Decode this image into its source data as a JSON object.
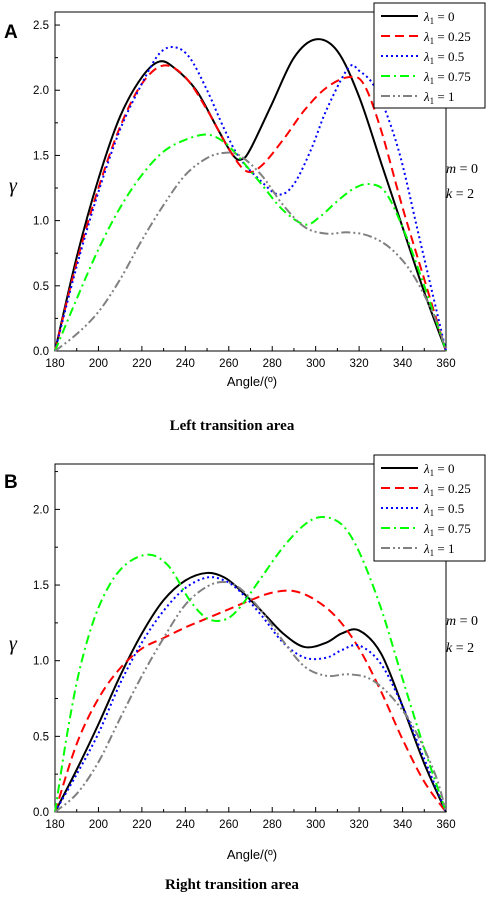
{
  "chart_data": [
    {
      "panel": "A",
      "type": "line",
      "caption": "Left transition area",
      "xlabel": "Angle/(º)",
      "ylabel": "γ",
      "xlim": [
        180,
        360
      ],
      "ylim": [
        0,
        2.6
      ],
      "x_ticks": [
        180,
        200,
        220,
        240,
        260,
        280,
        300,
        320,
        340,
        360
      ],
      "y_ticks": [
        0.0,
        0.5,
        1.0,
        1.5,
        2.0,
        2.5
      ],
      "legend_position": "top-right",
      "annotations": [
        "m = 0",
        "k = 2"
      ],
      "series": [
        {
          "name": "λ1 = 0",
          "value": "0",
          "color": "#000000",
          "dash": "solid",
          "points": [
            [
              180,
              0
            ],
            [
              190,
              0.72
            ],
            [
              200,
              1.32
            ],
            [
              210,
              1.8
            ],
            [
              220,
              2.1
            ],
            [
              228,
              2.22
            ],
            [
              235,
              2.17
            ],
            [
              245,
              2.0
            ],
            [
              255,
              1.7
            ],
            [
              262,
              1.5
            ],
            [
              266,
              1.47
            ],
            [
              270,
              1.55
            ],
            [
              280,
              1.9
            ],
            [
              290,
              2.25
            ],
            [
              300,
              2.39
            ],
            [
              310,
              2.3
            ],
            [
              320,
              1.95
            ],
            [
              330,
              1.45
            ],
            [
              340,
              0.95
            ],
            [
              350,
              0.45
            ],
            [
              360,
              0
            ]
          ]
        },
        {
          "name": "λ1 = 0.25",
          "value": "0.25",
          "color": "#ff0000",
          "dash": "dashed",
          "points": [
            [
              180,
              0
            ],
            [
              190,
              0.68
            ],
            [
              200,
              1.25
            ],
            [
              210,
              1.72
            ],
            [
              220,
              2.05
            ],
            [
              230,
              2.19
            ],
            [
              240,
              2.1
            ],
            [
              250,
              1.85
            ],
            [
              260,
              1.55
            ],
            [
              268,
              1.38
            ],
            [
              275,
              1.42
            ],
            [
              285,
              1.62
            ],
            [
              295,
              1.85
            ],
            [
              305,
              2.02
            ],
            [
              315,
              2.1
            ],
            [
              322,
              2.05
            ],
            [
              330,
              1.7
            ],
            [
              340,
              1.1
            ],
            [
              350,
              0.55
            ],
            [
              360,
              0
            ]
          ]
        },
        {
          "name": "λ1 = 0.5",
          "value": "0.5",
          "color": "#0000ff",
          "dash": "dotted",
          "points": [
            [
              180,
              0
            ],
            [
              190,
              0.65
            ],
            [
              200,
              1.22
            ],
            [
              210,
              1.7
            ],
            [
              220,
              2.05
            ],
            [
              228,
              2.28
            ],
            [
              235,
              2.33
            ],
            [
              242,
              2.25
            ],
            [
              250,
              2.0
            ],
            [
              258,
              1.7
            ],
            [
              265,
              1.48
            ],
            [
              275,
              1.3
            ],
            [
              283,
              1.2
            ],
            [
              290,
              1.28
            ],
            [
              298,
              1.55
            ],
            [
              305,
              1.85
            ],
            [
              315,
              2.17
            ],
            [
              320,
              2.15
            ],
            [
              328,
              2.0
            ],
            [
              338,
              1.55
            ],
            [
              348,
              0.85
            ],
            [
              360,
              0
            ]
          ]
        },
        {
          "name": "λ1 = 0.75",
          "value": "0.75",
          "color": "#00ff00",
          "dash": "dashdot",
          "points": [
            [
              180,
              0
            ],
            [
              190,
              0.4
            ],
            [
              200,
              0.78
            ],
            [
              210,
              1.1
            ],
            [
              220,
              1.35
            ],
            [
              230,
              1.53
            ],
            [
              240,
              1.62
            ],
            [
              250,
              1.66
            ],
            [
              258,
              1.6
            ],
            [
              265,
              1.48
            ],
            [
              275,
              1.28
            ],
            [
              285,
              1.08
            ],
            [
              295,
              0.97
            ],
            [
              302,
              1.03
            ],
            [
              310,
              1.15
            ],
            [
              318,
              1.25
            ],
            [
              325,
              1.28
            ],
            [
              332,
              1.22
            ],
            [
              340,
              0.95
            ],
            [
              350,
              0.5
            ],
            [
              360,
              0
            ]
          ]
        },
        {
          "name": "λ1 = 1",
          "value": "1",
          "color": "#808080",
          "dash": "dashdotdot",
          "points": [
            [
              180,
              0
            ],
            [
              190,
              0.13
            ],
            [
              200,
              0.3
            ],
            [
              210,
              0.55
            ],
            [
              220,
              0.85
            ],
            [
              230,
              1.12
            ],
            [
              240,
              1.35
            ],
            [
              250,
              1.48
            ],
            [
              258,
              1.52
            ],
            [
              265,
              1.5
            ],
            [
              275,
              1.35
            ],
            [
              285,
              1.12
            ],
            [
              295,
              0.95
            ],
            [
              305,
              0.9
            ],
            [
              315,
              0.91
            ],
            [
              325,
              0.88
            ],
            [
              335,
              0.78
            ],
            [
              345,
              0.58
            ],
            [
              355,
              0.25
            ],
            [
              360,
              0
            ]
          ]
        }
      ]
    },
    {
      "panel": "B",
      "type": "line",
      "caption": "Right transition area",
      "xlabel": "Angle/(º)",
      "ylabel": "γ",
      "xlim": [
        180,
        360
      ],
      "ylim": [
        0,
        2.3
      ],
      "x_ticks": [
        180,
        200,
        220,
        240,
        260,
        280,
        300,
        320,
        340,
        360
      ],
      "y_ticks": [
        0.0,
        0.5,
        1.0,
        1.5,
        2.0
      ],
      "legend_position": "top-right",
      "annotations": [
        "m = 0",
        "k = 2"
      ],
      "series": [
        {
          "name": "λ1 = 0",
          "value": "0",
          "color": "#000000",
          "dash": "solid",
          "points": [
            [
              180,
              0
            ],
            [
              190,
              0.28
            ],
            [
              200,
              0.58
            ],
            [
              210,
              0.9
            ],
            [
              220,
              1.18
            ],
            [
              230,
              1.4
            ],
            [
              240,
              1.53
            ],
            [
              250,
              1.58
            ],
            [
              258,
              1.55
            ],
            [
              265,
              1.47
            ],
            [
              275,
              1.33
            ],
            [
              285,
              1.18
            ],
            [
              295,
              1.09
            ],
            [
              305,
              1.12
            ],
            [
              312,
              1.18
            ],
            [
              320,
              1.2
            ],
            [
              330,
              1.05
            ],
            [
              340,
              0.7
            ],
            [
              350,
              0.32
            ],
            [
              360,
              0
            ]
          ]
        },
        {
          "name": "λ1 = 0.25",
          "value": "0.25",
          "color": "#ff0000",
          "dash": "dashed",
          "points": [
            [
              180,
              0
            ],
            [
              190,
              0.45
            ],
            [
              200,
              0.75
            ],
            [
              210,
              0.95
            ],
            [
              220,
              1.08
            ],
            [
              230,
              1.15
            ],
            [
              240,
              1.22
            ],
            [
              250,
              1.28
            ],
            [
              260,
              1.34
            ],
            [
              270,
              1.4
            ],
            [
              280,
              1.45
            ],
            [
              290,
              1.46
            ],
            [
              300,
              1.4
            ],
            [
              310,
              1.28
            ],
            [
              320,
              1.08
            ],
            [
              330,
              0.8
            ],
            [
              340,
              0.48
            ],
            [
              350,
              0.2
            ],
            [
              360,
              0
            ]
          ]
        },
        {
          "name": "λ1 = 0.5",
          "value": "0.5",
          "color": "#0000ff",
          "dash": "dotted",
          "points": [
            [
              180,
              0
            ],
            [
              190,
              0.25
            ],
            [
              200,
              0.52
            ],
            [
              210,
              0.85
            ],
            [
              220,
              1.12
            ],
            [
              230,
              1.33
            ],
            [
              240,
              1.48
            ],
            [
              250,
              1.55
            ],
            [
              258,
              1.53
            ],
            [
              265,
              1.46
            ],
            [
              275,
              1.3
            ],
            [
              285,
              1.12
            ],
            [
              295,
              1.02
            ],
            [
              305,
              1.02
            ],
            [
              312,
              1.07
            ],
            [
              320,
              1.1
            ],
            [
              330,
              0.98
            ],
            [
              340,
              0.7
            ],
            [
              350,
              0.35
            ],
            [
              360,
              0
            ]
          ]
        },
        {
          "name": "λ1 = 0.75",
          "value": "0.75",
          "color": "#00ff00",
          "dash": "dashdot",
          "points": [
            [
              180,
              0
            ],
            [
              186,
              0.55
            ],
            [
              192,
              0.98
            ],
            [
              200,
              1.35
            ],
            [
              210,
              1.6
            ],
            [
              222,
              1.7
            ],
            [
              232,
              1.63
            ],
            [
              242,
              1.4
            ],
            [
              250,
              1.28
            ],
            [
              258,
              1.27
            ],
            [
              265,
              1.35
            ],
            [
              275,
              1.55
            ],
            [
              285,
              1.75
            ],
            [
              295,
              1.9
            ],
            [
              303,
              1.95
            ],
            [
              312,
              1.9
            ],
            [
              320,
              1.72
            ],
            [
              330,
              1.35
            ],
            [
              340,
              0.88
            ],
            [
              350,
              0.42
            ],
            [
              360,
              0
            ]
          ]
        },
        {
          "name": "λ1 = 1",
          "value": "1",
          "color": "#808080",
          "dash": "dashdotdot",
          "points": [
            [
              180,
              0
            ],
            [
              190,
              0.12
            ],
            [
              200,
              0.33
            ],
            [
              210,
              0.62
            ],
            [
              220,
              0.9
            ],
            [
              230,
              1.15
            ],
            [
              240,
              1.37
            ],
            [
              250,
              1.49
            ],
            [
              258,
              1.52
            ],
            [
              265,
              1.48
            ],
            [
              275,
              1.33
            ],
            [
              285,
              1.13
            ],
            [
              295,
              0.96
            ],
            [
              305,
              0.9
            ],
            [
              315,
              0.91
            ],
            [
              325,
              0.88
            ],
            [
              335,
              0.76
            ],
            [
              345,
              0.56
            ],
            [
              355,
              0.25
            ],
            [
              360,
              0
            ]
          ]
        }
      ]
    }
  ]
}
